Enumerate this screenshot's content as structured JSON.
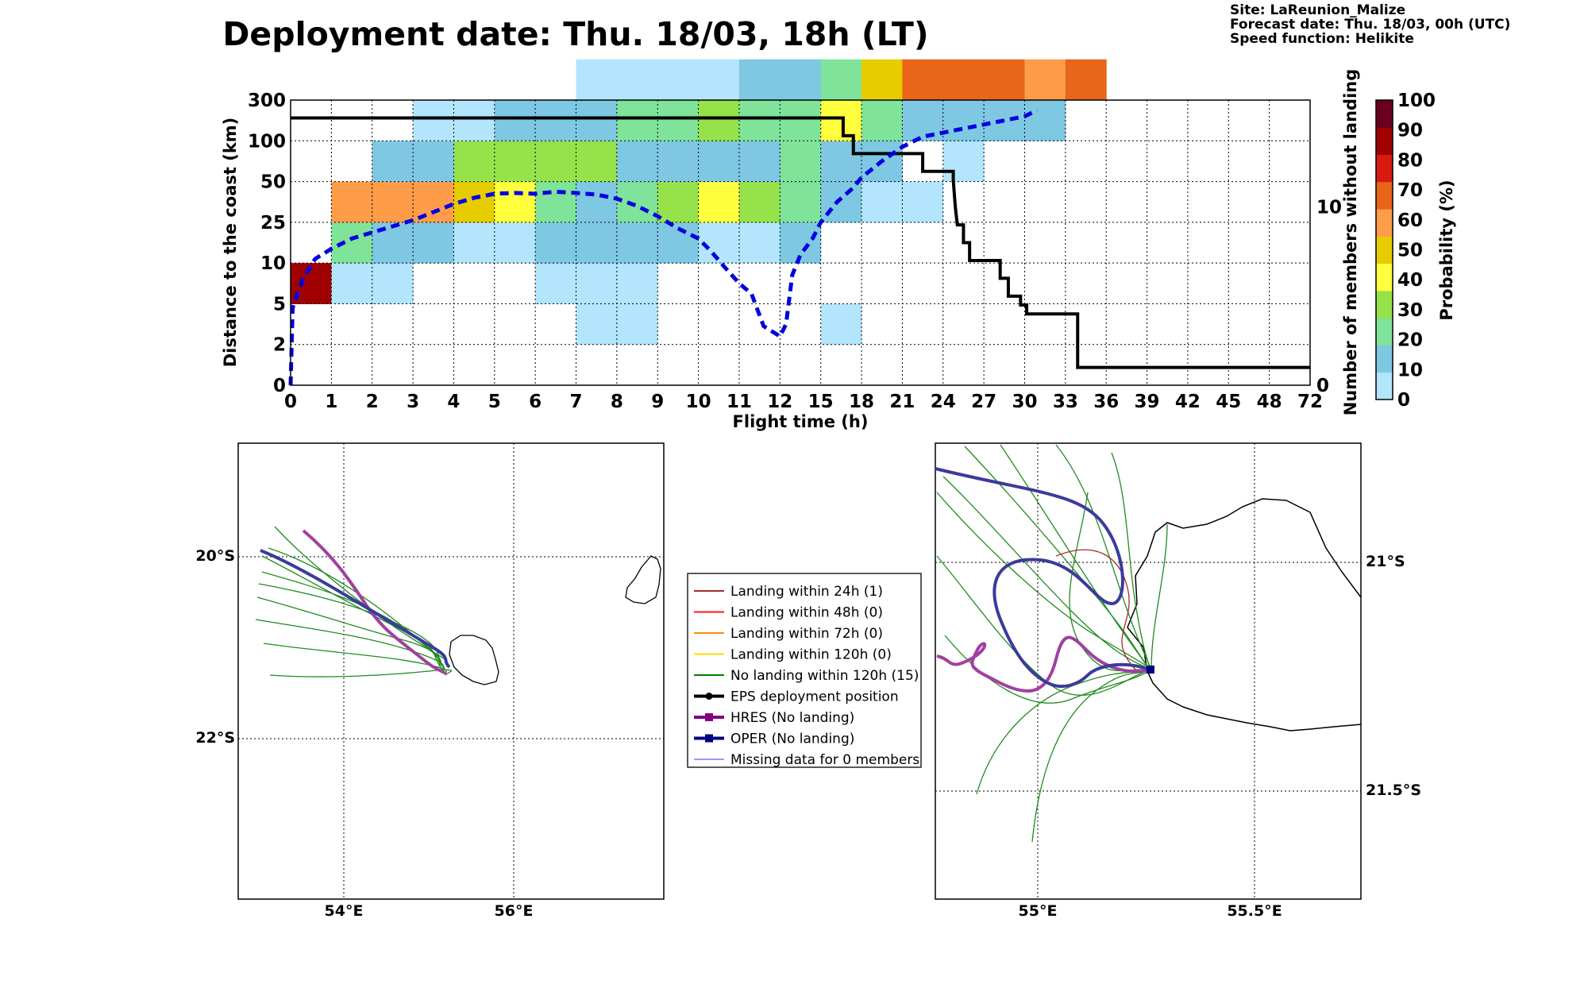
{
  "title": "Deployment date: Thu. 18/03, 18h (LT)",
  "meta": {
    "site": "Site: LaReunion_Malize",
    "forecast": "Forecast date: Thu. 18/03, 00h (UTC)",
    "speed": "Speed function: Helikite"
  },
  "chart_data": [
    {
      "type": "heatmap",
      "xlabel": "Flight time (h)",
      "ylabel": "Distance to the coast (km)",
      "ylabel_right": "Number of members without landing",
      "colorbar_label": "Probability (%)",
      "x_bins": [
        "0",
        "1",
        "2",
        "3",
        "4",
        "5",
        "6",
        "7",
        "8",
        "9",
        "10",
        "11",
        "12",
        "15",
        "18",
        "21",
        "24",
        "27",
        "30",
        "33",
        "36",
        "39",
        "42",
        "45",
        "48",
        "72"
      ],
      "y_bins": [
        "0",
        "2",
        "5",
        "10",
        "25",
        "50",
        "100",
        "300"
      ],
      "right_ticks": [
        "0",
        "10"
      ],
      "right_range": [
        0,
        16
      ],
      "colorbar_ticks": [
        "0",
        "10",
        "20",
        "30",
        "40",
        "50",
        "60",
        "70",
        "80",
        "90",
        "100"
      ],
      "colorbar_colors": [
        "#b3e5fc",
        "#7ec8e3",
        "#7fe39a",
        "#96e24a",
        "#ffff3e",
        "#e6cc00",
        "#ff9c4a",
        "#e8651a",
        "#d81b10",
        "#a00000",
        "#6a0020"
      ],
      "cells": [
        {
          "x": 0,
          "y": 2,
          "p": 95
        },
        {
          "x": 1,
          "y": 2,
          "p": 5
        },
        {
          "x": 2,
          "y": 2,
          "p": 5
        },
        {
          "x": 7,
          "y": 1,
          "p": 5
        },
        {
          "x": 8,
          "y": 1,
          "p": 5
        },
        {
          "x": 13,
          "y": 1,
          "p": 5
        },
        {
          "x": 6,
          "y": 2,
          "p": 5
        },
        {
          "x": 7,
          "y": 2,
          "p": 5
        },
        {
          "x": 8,
          "y": 2,
          "p": 5
        },
        {
          "x": 1,
          "y": 3,
          "p": 25
        },
        {
          "x": 2,
          "y": 3,
          "p": 15
        },
        {
          "x": 3,
          "y": 3,
          "p": 15
        },
        {
          "x": 4,
          "y": 3,
          "p": 5
        },
        {
          "x": 5,
          "y": 3,
          "p": 5
        },
        {
          "x": 6,
          "y": 3,
          "p": 15
        },
        {
          "x": 7,
          "y": 3,
          "p": 15
        },
        {
          "x": 8,
          "y": 3,
          "p": 15
        },
        {
          "x": 9,
          "y": 3,
          "p": 15
        },
        {
          "x": 10,
          "y": 3,
          "p": 5
        },
        {
          "x": 11,
          "y": 3,
          "p": 5
        },
        {
          "x": 12,
          "y": 3,
          "p": 15
        },
        {
          "x": 1,
          "y": 4,
          "p": 65
        },
        {
          "x": 2,
          "y": 4,
          "p": 65
        },
        {
          "x": 3,
          "y": 4,
          "p": 65
        },
        {
          "x": 4,
          "y": 4,
          "p": 55
        },
        {
          "x": 5,
          "y": 4,
          "p": 45
        },
        {
          "x": 6,
          "y": 4,
          "p": 25
        },
        {
          "x": 7,
          "y": 4,
          "p": 15
        },
        {
          "x": 8,
          "y": 4,
          "p": 25
        },
        {
          "x": 9,
          "y": 4,
          "p": 35
        },
        {
          "x": 10,
          "y": 4,
          "p": 45
        },
        {
          "x": 11,
          "y": 4,
          "p": 35
        },
        {
          "x": 12,
          "y": 4,
          "p": 25
        },
        {
          "x": 13,
          "y": 4,
          "p": 15
        },
        {
          "x": 14,
          "y": 4,
          "p": 5
        },
        {
          "x": 15,
          "y": 4,
          "p": 5
        },
        {
          "x": 2,
          "y": 5,
          "p": 15
        },
        {
          "x": 3,
          "y": 5,
          "p": 15
        },
        {
          "x": 4,
          "y": 5,
          "p": 35
        },
        {
          "x": 5,
          "y": 5,
          "p": 35
        },
        {
          "x": 6,
          "y": 5,
          "p": 35
        },
        {
          "x": 7,
          "y": 5,
          "p": 35
        },
        {
          "x": 8,
          "y": 5,
          "p": 15
        },
        {
          "x": 9,
          "y": 5,
          "p": 15
        },
        {
          "x": 10,
          "y": 5,
          "p": 15
        },
        {
          "x": 11,
          "y": 5,
          "p": 15
        },
        {
          "x": 12,
          "y": 5,
          "p": 25
        },
        {
          "x": 13,
          "y": 5,
          "p": 15
        },
        {
          "x": 14,
          "y": 5,
          "p": 15
        },
        {
          "x": 16,
          "y": 5,
          "p": 5
        },
        {
          "x": 3,
          "y": 6,
          "p": 5
        },
        {
          "x": 4,
          "y": 6,
          "p": 5
        },
        {
          "x": 5,
          "y": 6,
          "p": 15
        },
        {
          "x": 6,
          "y": 6,
          "p": 15
        },
        {
          "x": 7,
          "y": 6,
          "p": 15
        },
        {
          "x": 8,
          "y": 6,
          "p": 25
        },
        {
          "x": 9,
          "y": 6,
          "p": 25
        },
        {
          "x": 10,
          "y": 6,
          "p": 35
        },
        {
          "x": 11,
          "y": 6,
          "p": 25
        },
        {
          "x": 12,
          "y": 6,
          "p": 25
        },
        {
          "x": 13,
          "y": 6,
          "p": 45
        },
        {
          "x": 14,
          "y": 6,
          "p": 25
        },
        {
          "x": 15,
          "y": 6,
          "p": 15
        },
        {
          "x": 16,
          "y": 6,
          "p": 15
        },
        {
          "x": 17,
          "y": 6,
          "p": 15
        },
        {
          "x": 18,
          "y": 6,
          "p": 15
        },
        {
          "x": 7,
          "y": 7,
          "p": 5
        },
        {
          "x": 8,
          "y": 7,
          "p": 5
        },
        {
          "x": 9,
          "y": 7,
          "p": 5
        },
        {
          "x": 10,
          "y": 7,
          "p": 5
        },
        {
          "x": 11,
          "y": 7,
          "p": 15
        },
        {
          "x": 12,
          "y": 7,
          "p": 15
        },
        {
          "x": 13,
          "y": 7,
          "p": 25
        },
        {
          "x": 14,
          "y": 7,
          "p": 55
        },
        {
          "x": 15,
          "y": 7,
          "p": 75
        },
        {
          "x": 16,
          "y": 7,
          "p": 75
        },
        {
          "x": 17,
          "y": 7,
          "p": 75
        },
        {
          "x": 18,
          "y": 7,
          "p": 65
        },
        {
          "x": 19,
          "y": 7,
          "p": 75
        }
      ],
      "median_line": {
        "name": "dashed blue",
        "points": [
          [
            0,
            0
          ],
          [
            0.05,
            1.9
          ],
          [
            0.3,
            2.6
          ],
          [
            0.6,
            3.1
          ],
          [
            1,
            3.35
          ],
          [
            1.5,
            3.6
          ],
          [
            2,
            3.75
          ],
          [
            2.5,
            3.9
          ],
          [
            3,
            4.05
          ],
          [
            3.5,
            4.25
          ],
          [
            4,
            4.45
          ],
          [
            4.5,
            4.6
          ],
          [
            5,
            4.7
          ],
          [
            5.5,
            4.72
          ],
          [
            6,
            4.7
          ],
          [
            6.5,
            4.75
          ],
          [
            7,
            4.72
          ],
          [
            7.5,
            4.68
          ],
          [
            8,
            4.58
          ],
          [
            8.5,
            4.4
          ],
          [
            9,
            4.15
          ],
          [
            9.5,
            3.85
          ],
          [
            10,
            3.6
          ],
          [
            10.3,
            3.3
          ],
          [
            10.6,
            2.95
          ],
          [
            11,
            2.5
          ],
          [
            11.3,
            2.25
          ],
          [
            11.6,
            1.45
          ],
          [
            12,
            1.2
          ],
          [
            12.15,
            1.5
          ],
          [
            12.3,
            2.7
          ],
          [
            12.5,
            3.2
          ],
          [
            12.8,
            3.6
          ],
          [
            13,
            4.0
          ],
          [
            13.4,
            4.5
          ],
          [
            13.8,
            4.85
          ],
          [
            14,
            5.1
          ],
          [
            14.5,
            5.5
          ],
          [
            15,
            5.85
          ],
          [
            15.5,
            6.1
          ],
          [
            16,
            6.2
          ],
          [
            16.5,
            6.3
          ],
          [
            17,
            6.4
          ],
          [
            17.5,
            6.5
          ],
          [
            18,
            6.6
          ],
          [
            18.3,
            6.75
          ]
        ]
      },
      "members_line": {
        "points": [
          [
            0,
            15
          ],
          [
            13.55,
            15
          ],
          [
            13.55,
            14
          ],
          [
            13.8,
            14
          ],
          [
            13.8,
            13
          ],
          [
            15.5,
            13
          ],
          [
            15.5,
            12
          ],
          [
            16.25,
            12
          ],
          [
            16.25,
            11.5
          ],
          [
            16.3,
            10
          ],
          [
            16.35,
            9
          ],
          [
            16.5,
            9
          ],
          [
            16.5,
            8
          ],
          [
            16.65,
            8
          ],
          [
            16.65,
            7
          ],
          [
            17.4,
            7
          ],
          [
            17.4,
            6
          ],
          [
            17.6,
            6
          ],
          [
            17.6,
            5
          ],
          [
            17.9,
            5
          ],
          [
            17.9,
            4.5
          ],
          [
            18.05,
            4.5
          ],
          [
            18.05,
            4
          ],
          [
            19.3,
            4
          ],
          [
            19.3,
            1
          ],
          [
            25,
            1
          ]
        ]
      }
    }
  ],
  "legend": {
    "items": [
      {
        "label": "Landing within 24h (1)",
        "color": "#a52a2a",
        "kind": "line"
      },
      {
        "label": "Landing within 48h (0)",
        "color": "#ff1a1a",
        "kind": "line"
      },
      {
        "label": "Landing within 72h (0)",
        "color": "#ff8c00",
        "kind": "line"
      },
      {
        "label": "Landing within 120h (0)",
        "color": "#ffd700",
        "kind": "line"
      },
      {
        "label": "No landing within 120h (15)",
        "color": "#008000",
        "kind": "line"
      },
      {
        "label": "EPS deployment position",
        "color": "#000000",
        "kind": "dot"
      },
      {
        "label": "HRES (No landing)",
        "color": "#800080",
        "kind": "square"
      },
      {
        "label": "OPER (No landing)",
        "color": "#000080",
        "kind": "square"
      },
      {
        "label": "Missing data for 0 members",
        "color": "#3333ff",
        "kind": "thin"
      }
    ]
  },
  "map_left": {
    "lat_ticks": [
      "20°S",
      "22°S"
    ],
    "lon_ticks": [
      "54°E",
      "56°E"
    ]
  },
  "map_right": {
    "lat_ticks": [
      "21°S",
      "21.5°S"
    ],
    "lon_ticks": [
      "55°E",
      "55.5°E"
    ]
  }
}
